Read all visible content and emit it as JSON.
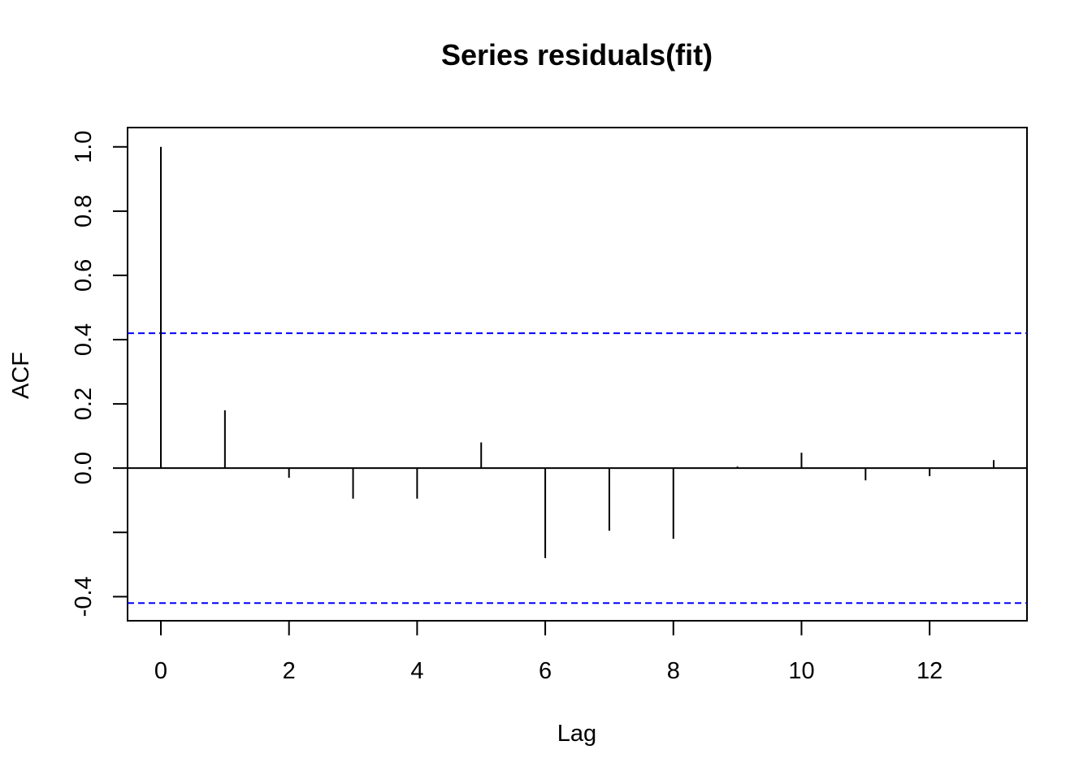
{
  "chart_data": {
    "type": "bar",
    "title": "Series  residuals(fit)",
    "xlabel": "Lag",
    "ylabel": "ACF",
    "x": [
      0,
      1,
      2,
      3,
      4,
      5,
      6,
      7,
      8,
      9,
      10,
      11,
      12,
      13
    ],
    "values": [
      1.0,
      0.18,
      -0.03,
      -0.095,
      -0.095,
      0.08,
      -0.28,
      -0.195,
      -0.22,
      0.005,
      0.048,
      -0.038,
      -0.025,
      0.025
    ],
    "xlim": [
      -0.52,
      13.52
    ],
    "ylim": [
      -0.475,
      1.06
    ],
    "x_ticks": [
      "0",
      "2",
      "4",
      "6",
      "8",
      "10",
      "12"
    ],
    "y_ticks": [
      "-0.4",
      "0.0",
      "0.2",
      "0.4",
      "0.6",
      "0.8",
      "1.0"
    ],
    "y_tick_marks": [
      -0.4,
      -0.2,
      0.0,
      0.2,
      0.4,
      0.6,
      0.8,
      1.0
    ],
    "confidence_bounds": [
      0.42,
      -0.42
    ],
    "confidence_color": "#0000ff",
    "line_color": "#000000",
    "grid": false,
    "legend": "none"
  }
}
